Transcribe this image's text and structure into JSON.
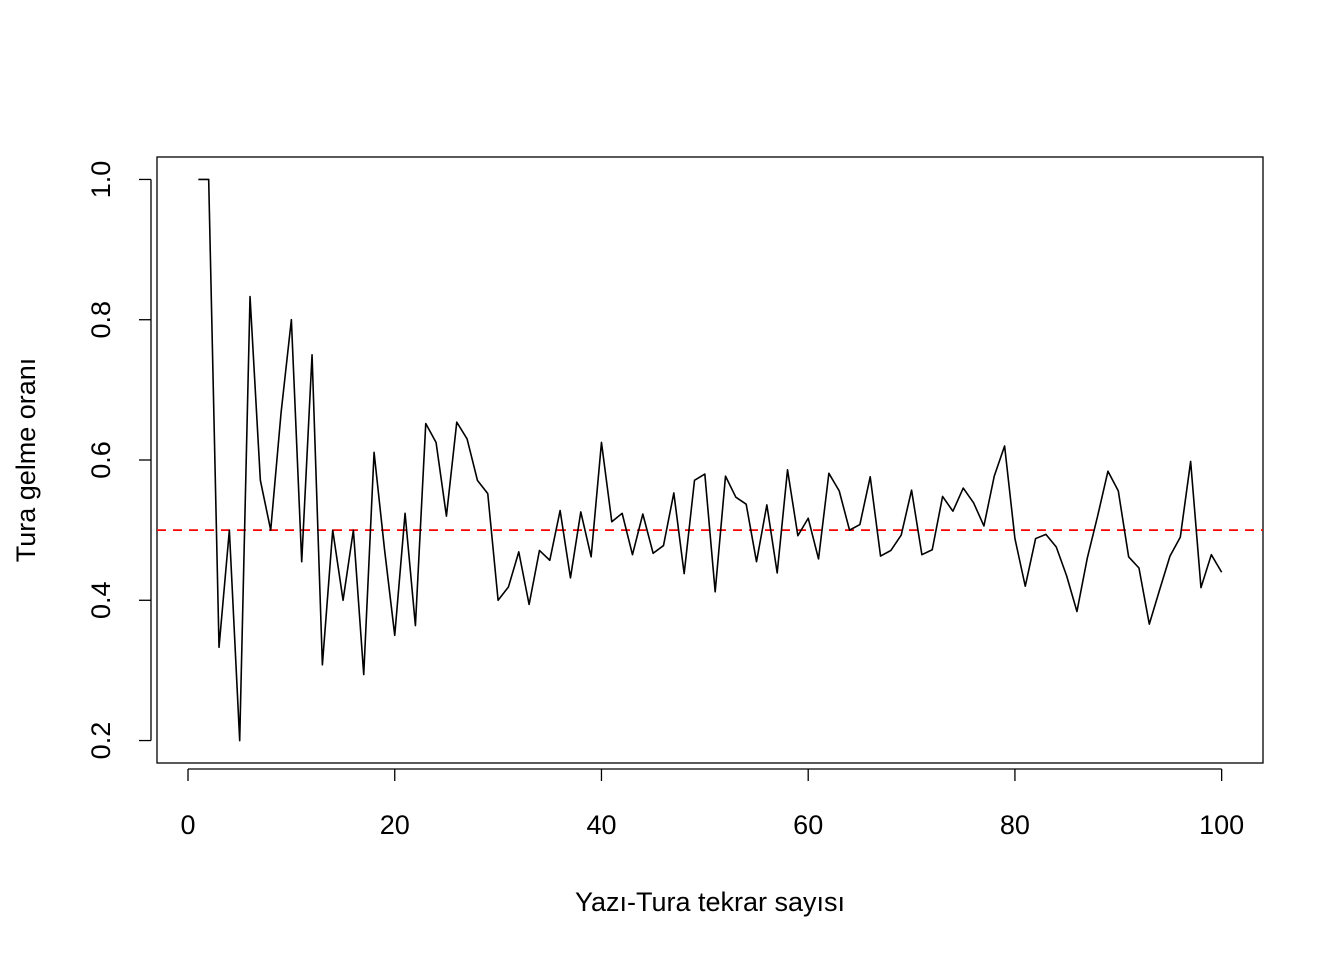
{
  "chart_data": {
    "type": "line",
    "title": "",
    "xlabel": "Yazı-Tura tekrar sayısı",
    "ylabel": "Tura gelme oranı",
    "xlim": [
      -3,
      104
    ],
    "ylim": [
      0.168,
      1.032
    ],
    "x_ticks": [
      {
        "value": 0,
        "label": "0"
      },
      {
        "value": 20,
        "label": "20"
      },
      {
        "value": 40,
        "label": "40"
      },
      {
        "value": 60,
        "label": "60"
      },
      {
        "value": 80,
        "label": "80"
      },
      {
        "value": 100,
        "label": "100"
      }
    ],
    "y_ticks": [
      {
        "value": 0.2,
        "label": "0.2"
      },
      {
        "value": 0.4,
        "label": "0.4"
      },
      {
        "value": 0.6,
        "label": "0.6"
      },
      {
        "value": 0.8,
        "label": "0.8"
      },
      {
        "value": 1.0,
        "label": "1.0"
      }
    ],
    "grid": false,
    "series": [
      {
        "color": "#000000",
        "x": [
          1,
          2,
          3,
          4,
          5,
          6,
          7,
          8,
          9,
          10,
          11,
          12,
          13,
          14,
          15,
          16,
          17,
          18,
          19,
          20,
          21,
          22,
          23,
          24,
          25,
          26,
          27,
          28,
          29,
          30,
          31,
          32,
          33,
          34,
          35,
          36,
          37,
          38,
          39,
          40,
          41,
          42,
          43,
          44,
          45,
          46,
          47,
          48,
          49,
          50,
          51,
          52,
          53,
          54,
          55,
          56,
          57,
          58,
          59,
          60,
          61,
          62,
          63,
          64,
          65,
          66,
          67,
          68,
          69,
          70,
          71,
          72,
          73,
          74,
          75,
          76,
          77,
          78,
          79,
          80,
          81,
          82,
          83,
          84,
          85,
          86,
          87,
          88,
          89,
          90,
          91,
          92,
          93,
          94,
          95,
          96,
          97,
          98,
          99,
          100
        ],
        "values": [
          1.0,
          1.0,
          0.333,
          0.5,
          0.2,
          0.833,
          0.571,
          0.5,
          0.667,
          0.8,
          0.455,
          0.75,
          0.308,
          0.5,
          0.4,
          0.5,
          0.294,
          0.611,
          0.474,
          0.35,
          0.524,
          0.364,
          0.652,
          0.625,
          0.52,
          0.654,
          0.63,
          0.571,
          0.552,
          0.4,
          0.419,
          0.469,
          0.394,
          0.471,
          0.457,
          0.528,
          0.432,
          0.526,
          0.462,
          0.625,
          0.512,
          0.524,
          0.465,
          0.523,
          0.467,
          0.478,
          0.553,
          0.438,
          0.571,
          0.58,
          0.412,
          0.577,
          0.547,
          0.537,
          0.455,
          0.536,
          0.439,
          0.586,
          0.492,
          0.517,
          0.459,
          0.581,
          0.556,
          0.5,
          0.508,
          0.576,
          0.463,
          0.471,
          0.493,
          0.557,
          0.465,
          0.472,
          0.548,
          0.527,
          0.56,
          0.539,
          0.506,
          0.577,
          0.62,
          0.488,
          0.42,
          0.488,
          0.494,
          0.476,
          0.435,
          0.384,
          0.46,
          0.52,
          0.584,
          0.556,
          0.462,
          0.446,
          0.366,
          0.415,
          0.463,
          0.49,
          0.598,
          0.418,
          0.465,
          0.44
        ]
      }
    ],
    "reference_lines": [
      {
        "y": 0.5,
        "color": "#ff0000",
        "style": "dashed"
      }
    ]
  }
}
